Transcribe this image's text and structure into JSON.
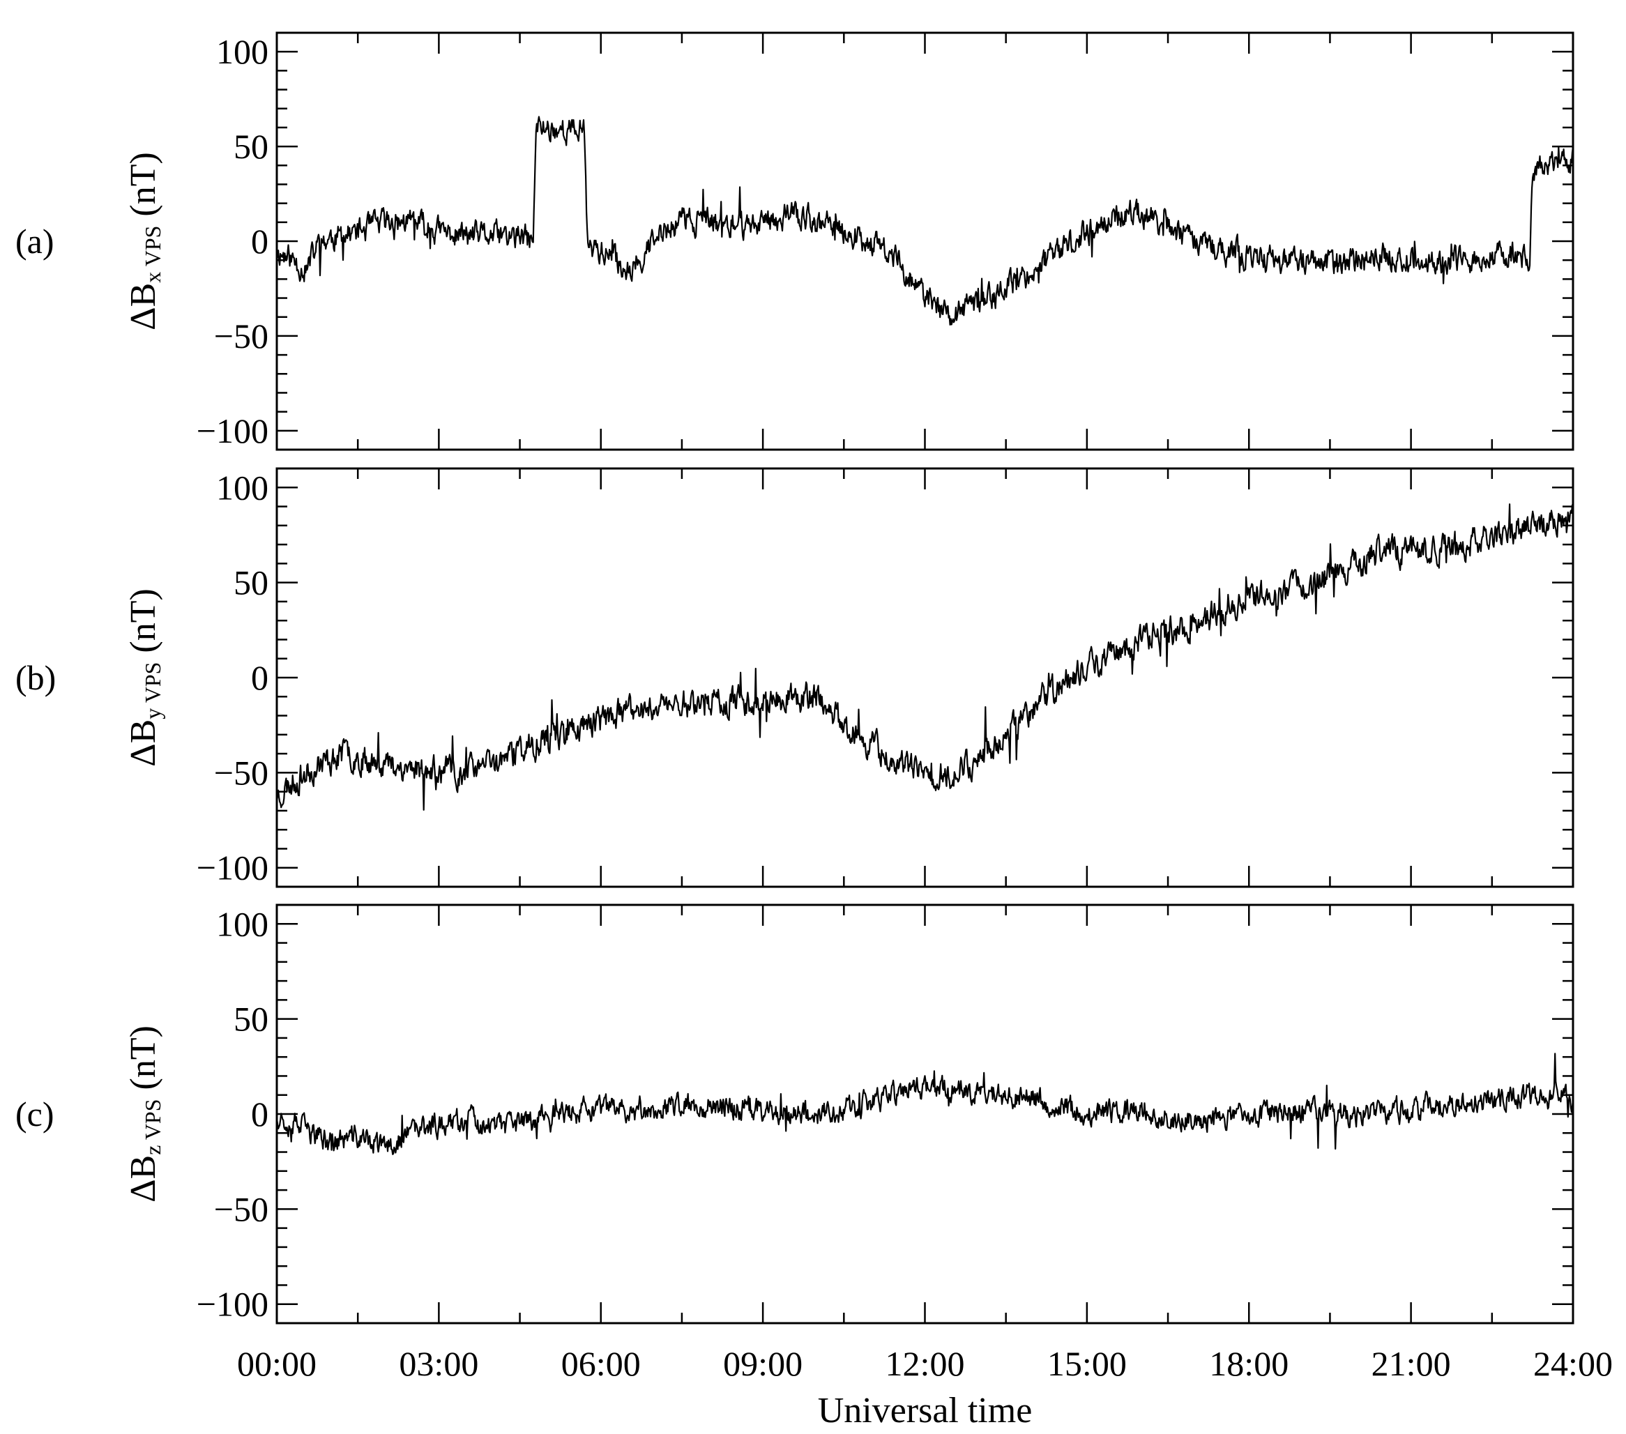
{
  "chart_data": {
    "type": "line",
    "xlabel": "Universal time",
    "x_tick_labels": [
      "00:00",
      "03:00",
      "06:00",
      "09:00",
      "12:00",
      "15:00",
      "18:00",
      "21:00",
      "24:00"
    ],
    "x_unit": "hours UT",
    "xlim": [
      0,
      24
    ],
    "shared_x": true,
    "line_color": "#000000",
    "grid": false,
    "panels": [
      {
        "tag": "(a)",
        "ylabel": {
          "prefix": "ΔB",
          "sub": "x VPS",
          "suffix": " (nT)"
        },
        "ylim": [
          -110,
          110
        ],
        "y_ticks": [
          -100,
          -50,
          0,
          50,
          100
        ],
        "y_tick_labels": [
          "−100",
          "−50",
          "0",
          "50",
          "100"
        ],
        "noise": 5.5,
        "seed": 11,
        "x": [
          0,
          0.3,
          0.55,
          0.8,
          1.5,
          2.0,
          2.5,
          3.0,
          3.5,
          4.0,
          4.5,
          4.75,
          4.8,
          5.0,
          5.5,
          5.7,
          5.75,
          6.0,
          6.5,
          7.0,
          7.5,
          8.0,
          8.5,
          9.0,
          9.5,
          10.0,
          10.5,
          11.0,
          11.5,
          12.0,
          12.5,
          13.0,
          13.5,
          14.0,
          14.5,
          15.0,
          15.5,
          16.0,
          16.5,
          17.0,
          17.5,
          18.0,
          18.5,
          19.0,
          19.5,
          20.0,
          20.5,
          21.0,
          21.5,
          22.0,
          22.5,
          23.0,
          23.2,
          23.25,
          23.5,
          24.0
        ],
        "y": [
          -5,
          -10,
          -15,
          0,
          5,
          10,
          10,
          5,
          3,
          3,
          2,
          0,
          60,
          60,
          58,
          60,
          0,
          -5,
          -15,
          0,
          12,
          10,
          8,
          10,
          15,
          10,
          5,
          0,
          -10,
          -30,
          -40,
          -32,
          -25,
          -15,
          -5,
          5,
          12,
          15,
          8,
          0,
          -5,
          -8,
          -10,
          -10,
          -12,
          -10,
          -8,
          -10,
          -12,
          -10,
          -8,
          -8,
          -10,
          35,
          40,
          42
        ]
      },
      {
        "tag": "(b)",
        "ylabel": {
          "prefix": "ΔB",
          "sub": "y VPS",
          "suffix": " (nT)"
        },
        "ylim": [
          -110,
          110
        ],
        "y_ticks": [
          -100,
          -50,
          0,
          50,
          100
        ],
        "y_tick_labels": [
          "−100",
          "−50",
          "0",
          "50",
          "100"
        ],
        "noise": 6,
        "seed": 23,
        "x": [
          0,
          0.3,
          0.8,
          1.3,
          2.0,
          3.0,
          3.5,
          4.0,
          5.0,
          6.0,
          7.0,
          8.0,
          9.0,
          10.0,
          10.5,
          11.0,
          11.5,
          12.0,
          12.5,
          13.0,
          13.5,
          14.0,
          14.5,
          15.0,
          16.0,
          17.0,
          18.0,
          19.0,
          19.5,
          20.0,
          20.5,
          21.0,
          22.0,
          23.0,
          24.0
        ],
        "y": [
          -62,
          -55,
          -45,
          -40,
          -45,
          -50,
          -50,
          -45,
          -32,
          -22,
          -15,
          -12,
          -12,
          -10,
          -25,
          -35,
          -45,
          -52,
          -50,
          -42,
          -30,
          -15,
          -5,
          5,
          20,
          28,
          42,
          48,
          55,
          60,
          68,
          65,
          70,
          78,
          85
        ]
      },
      {
        "tag": "(c)",
        "ylabel": {
          "prefix": "ΔB",
          "sub": "z VPS",
          "suffix": " (nT)"
        },
        "ylim": [
          -110,
          110
        ],
        "y_ticks": [
          -100,
          -50,
          0,
          50,
          100
        ],
        "y_tick_labels": [
          "−100",
          "−50",
          "0",
          "50",
          "100"
        ],
        "noise": 5,
        "seed": 37,
        "x": [
          0,
          0.5,
          1.0,
          1.5,
          2.0,
          2.5,
          3.0,
          3.5,
          4.0,
          4.5,
          5.0,
          6.0,
          7.0,
          8.0,
          9.0,
          10.0,
          11.0,
          11.5,
          12.0,
          13.0,
          14.0,
          15.0,
          16.0,
          17.0,
          18.0,
          19.0,
          20.0,
          21.0,
          22.0,
          23.0,
          24.0
        ],
        "y": [
          0,
          -8,
          -15,
          -12,
          -18,
          -10,
          -5,
          -2,
          -8,
          -5,
          0,
          2,
          3,
          5,
          2,
          0,
          5,
          12,
          15,
          12,
          8,
          0,
          2,
          -5,
          0,
          2,
          0,
          3,
          5,
          10,
          8
        ]
      }
    ]
  }
}
